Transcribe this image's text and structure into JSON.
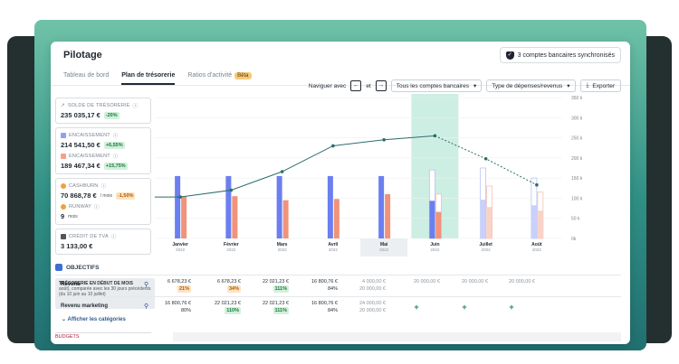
{
  "header": {
    "title": "Pilotage",
    "sync_label": "3 comptes bancaires synchronisés"
  },
  "tabs": [
    {
      "label": "Tableau de bord"
    },
    {
      "label": "Plan de trésorerie"
    },
    {
      "label": "Ratios d'activité",
      "badge": "Bêta"
    }
  ],
  "toolbar": {
    "nav_label": "Naviguer avec",
    "nav_and": "et",
    "prev": "←",
    "next": "→",
    "accounts": "Tous les comptes bancaires",
    "types": "Type de dépenses/revenus",
    "export": "Exporter"
  },
  "cards": [
    {
      "label": "SOLDE DE TRÉSORERIE",
      "value": "235 035,17 €",
      "badge": "-20%"
    },
    {
      "label": "ENCAISSEMENT",
      "value": "214 541,50 €",
      "badge": "+6,55%"
    },
    {
      "label": "ENCAISSEMENT",
      "value": "189 467,34 €",
      "badge": "+15,75%"
    },
    {
      "label": "CASHBURN",
      "value": "70 868,78 €",
      "unit": "/ mois",
      "badge": "-1,50%"
    },
    {
      "label": "RUNWAY",
      "value": "9",
      "unit": "mois"
    },
    {
      "label": "CRÉDIT DE TVA",
      "value": "3 133,00 €"
    }
  ],
  "tooltip": {
    "title": "TRÉSORERIE EN DÉBUT DE MOIS",
    "text": "août), comparée avec les 30 jours précédents (du 10 juin au 10 juillet)"
  },
  "objectifs": {
    "label": "OBJECTIFS",
    "show_categories": "Afficher les catégories",
    "footer": "BUDGETS"
  },
  "rows": [
    {
      "label": "Revenu",
      "cells": [
        {
          "v": "6 678,23 €",
          "p": "21%",
          "c": "o"
        },
        {
          "v": "6 678,23 €",
          "p": "34%",
          "c": "o"
        },
        {
          "v": "22 021,23 €",
          "p": "111%",
          "c": "g"
        },
        {
          "v": "16 800,76 €",
          "p": "84%",
          "c": ""
        },
        {
          "v": "4 000,00 €",
          "p": "20 000,00 €",
          "c": "ghost"
        },
        {
          "v": "20 000,00 €",
          "c": "ghost"
        },
        {
          "v": "20 000,00 €",
          "c": "ghost"
        },
        {
          "v": "20 000,00 €",
          "c": "ghost"
        }
      ]
    },
    {
      "label": "Revenu marketing",
      "cells": [
        {
          "v": "16 800,76 €",
          "p": "80%",
          "c": ""
        },
        {
          "v": "22 021,23 €",
          "p": "110%",
          "c": "g"
        },
        {
          "v": "22 021,23 €",
          "p": "111%",
          "c": "g"
        },
        {
          "v": "16 800,76 €",
          "p": "84%",
          "c": ""
        },
        {
          "v": "24 000,00 €",
          "p": "20 000,00 €",
          "c": "ghost"
        },
        {
          "v": "+",
          "c": "plus"
        },
        {
          "v": "+",
          "c": "plus"
        },
        {
          "v": "+",
          "c": "plus"
        }
      ]
    }
  ],
  "chart_data": {
    "type": "bar",
    "categories": [
      "Janvier",
      "Février",
      "Mars",
      "Avril",
      "Mai",
      "Juin",
      "Juillet",
      "Août"
    ],
    "year": "2022",
    "y_ticks": [
      "350 k",
      "300 k",
      "250 k",
      "200 k",
      "150 k",
      "100 k",
      "50 k",
      "0k"
    ],
    "ylim": [
      0,
      350
    ],
    "series": [
      {
        "values": [
          155,
          155,
          155,
          155,
          155,
          170,
          175,
          150
        ]
      },
      {
        "values": [
          105,
          105,
          95,
          98,
          110,
          110,
          130,
          115
        ]
      },
      {
        "values": [
          103,
          120,
          166,
          230,
          245,
          255,
          198,
          133
        ]
      }
    ],
    "highlight": "Juin",
    "selected": "Mai",
    "colors": {
      "bar_a": "#6b7ff0",
      "bar_b": "#f0937a",
      "line": "#2a6e68",
      "highlight": "#cdeee3",
      "accent": "#ea8a6b"
    }
  }
}
